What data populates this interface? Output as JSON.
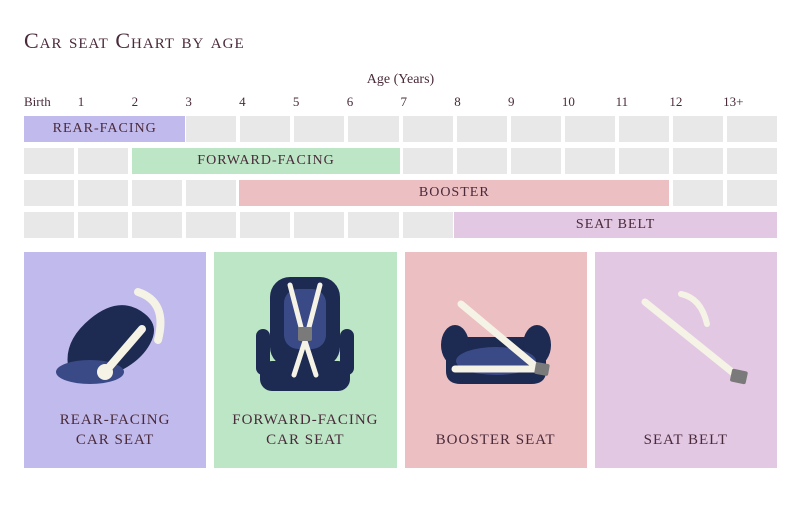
{
  "title": "Car seat Chart by age",
  "axisLabel": "Age (Years)",
  "ticks": [
    "Birth",
    "1",
    "2",
    "3",
    "4",
    "5",
    "6",
    "7",
    "8",
    "9",
    "10",
    "11",
    "12",
    "13+"
  ],
  "gantt": {
    "columns": 14,
    "bgCellColor": "#e8e8e8",
    "rows": [
      {
        "label": "REAR-FACING",
        "start": 0,
        "end": 3,
        "color": "#c1baec",
        "textColor": "#4a2a3a"
      },
      {
        "label": "FORWARD-FACING",
        "start": 2,
        "end": 7,
        "color": "#bce6c5",
        "textColor": "#4a2a3a"
      },
      {
        "label": "BOOSTER",
        "start": 4,
        "end": 12,
        "color": "#ecbfc2",
        "textColor": "#4a2a3a"
      },
      {
        "label": "SEAT BELT",
        "start": 8,
        "end": 14,
        "color": "#e3c8e4",
        "textColor": "#4a2a3a"
      }
    ]
  },
  "cards": [
    {
      "key": "rear",
      "label1": "REAR-FACING",
      "label2": "CAR SEAT",
      "bg": "#c1baec"
    },
    {
      "key": "forward",
      "label1": "FORWARD-FACING",
      "label2": "CAR SEAT",
      "bg": "#bce6c5"
    },
    {
      "key": "booster",
      "label1": "BOOSTER SEAT",
      "label2": "",
      "bg": "#ecbfc2"
    },
    {
      "key": "belt",
      "label1": "SEAT BELT",
      "label2": "",
      "bg": "#e3c8e4"
    }
  ],
  "iconColors": {
    "seatDark": "#1d2a52",
    "seatAccent": "#3a4a86",
    "strap": "#f5f3e5",
    "buckle": "#7a7a7a"
  }
}
